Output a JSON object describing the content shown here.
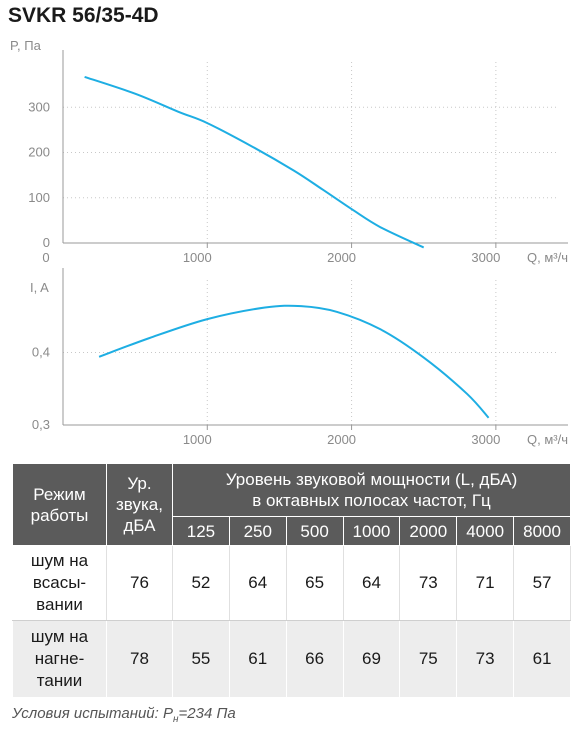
{
  "title": "SVKR 56/35-4D",
  "chart_data": [
    {
      "type": "line",
      "ylabel": "P, Па",
      "xlabel": "Q, м³/ч",
      "x_ticks": [
        1000,
        2000,
        3000
      ],
      "y_ticks": [
        0,
        100,
        200,
        300
      ],
      "xlim": [
        0,
        3500
      ],
      "ylim": [
        0,
        400
      ],
      "series": [
        {
          "x": [
            150,
            500,
            800,
            1000,
            1300,
            1600,
            1800,
            2000,
            2200,
            2500
          ],
          "y": [
            367,
            330,
            290,
            265,
            215,
            160,
            118,
            75,
            35,
            -10
          ]
        }
      ]
    },
    {
      "type": "line",
      "ylabel": "I, A",
      "xlabel": "Q, м³/ч",
      "x_ticks": [
        1000,
        2000,
        3000
      ],
      "y_ticks": [
        0.3,
        0.4
      ],
      "y_tick_labels": [
        "0,3",
        "0,4"
      ],
      "xlim": [
        0,
        3500
      ],
      "ylim": [
        0.3,
        0.5
      ],
      "series": [
        {
          "x": [
            250,
            600,
            1000,
            1400,
            1650,
            1900,
            2200,
            2500,
            2800,
            2950
          ],
          "y": [
            0.394,
            0.42,
            0.446,
            0.462,
            0.464,
            0.456,
            0.432,
            0.393,
            0.343,
            0.31
          ]
        }
      ]
    }
  ],
  "table": {
    "header_mode": "Режим работы",
    "header_level_lines": [
      "Ур.",
      "звука,",
      "дБА"
    ],
    "header_power_lines": [
      "Уровень звуковой мощности (L, дБА)",
      "в октавных полосах частот, Гц"
    ],
    "bands": [
      "125",
      "250",
      "500",
      "1000",
      "2000",
      "4000",
      "8000"
    ],
    "rows": [
      {
        "mode_lines": [
          "шум на",
          "всасы-",
          "вании"
        ],
        "level": "76",
        "values": [
          "52",
          "64",
          "65",
          "64",
          "73",
          "71",
          "57"
        ]
      },
      {
        "mode_lines": [
          "шум на",
          "нагне-",
          "тании"
        ],
        "level": "78",
        "values": [
          "55",
          "61",
          "66",
          "69",
          "75",
          "73",
          "61"
        ]
      }
    ]
  },
  "footnote": {
    "prefix": "Условия испытаний: P",
    "sub": "н",
    "suffix": "=234 Па"
  },
  "colors": {
    "curve": "#1eaee3",
    "axis": "#999999",
    "grid": "#c8c8c8",
    "header_bg": "#5b5b5b"
  }
}
